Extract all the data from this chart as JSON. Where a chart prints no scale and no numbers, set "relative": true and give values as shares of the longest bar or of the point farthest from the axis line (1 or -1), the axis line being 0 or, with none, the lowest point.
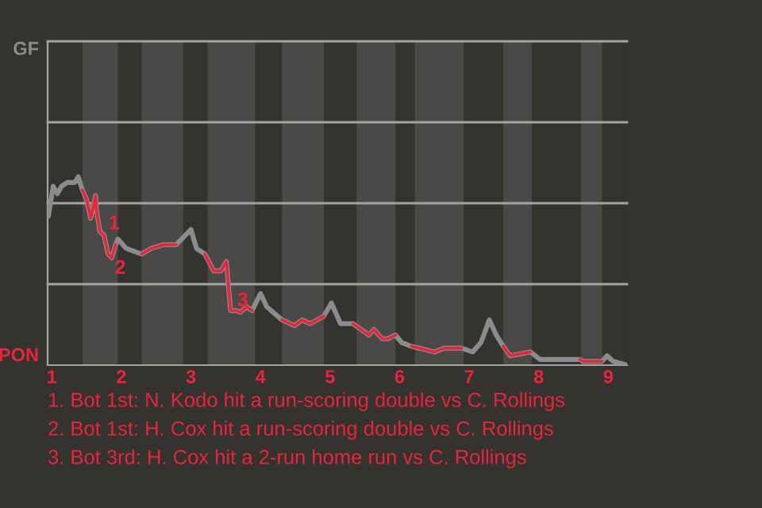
{
  "chart_data": {
    "type": "line",
    "relative": true,
    "x": [
      0.95,
      1.02,
      1.08,
      1.14,
      1.22,
      1.33,
      1.38,
      1.44,
      1.5,
      1.56,
      1.63,
      1.64,
      1.69,
      1.75,
      1.81,
      1.86,
      1.92,
      1.95,
      2.07,
      2.29,
      2.43,
      2.61,
      2.79,
      3.0,
      3.08,
      3.2,
      3.33,
      3.43,
      3.51,
      3.57,
      3.65,
      3.71,
      3.8,
      3.88,
      4.0,
      4.09,
      4.31,
      4.49,
      4.6,
      4.71,
      4.91,
      5.02,
      5.15,
      5.33,
      5.56,
      5.63,
      5.75,
      5.83,
      5.94,
      6.03,
      6.17,
      6.5,
      6.64,
      6.78,
      6.89,
      7.05,
      7.17,
      7.29,
      7.39,
      7.49,
      7.59,
      7.88,
      8.02,
      8.14,
      8.59,
      8.64,
      8.91,
      8.98,
      9.07,
      9.27
    ],
    "series": [
      {
        "color": "#8c8c8c",
        "values": [
          0.79,
          0.95,
          0.91,
          0.95,
          0.97,
          0.97,
          1,
          0.93,
          0.88,
          0.78,
          0.9,
          0.83,
          0.71,
          0.69,
          0.59,
          0.57,
          0.64,
          0.67,
          0.62,
          0.59,
          0.62,
          0.64,
          0.64,
          0.72,
          0.62,
          0.59,
          0.5,
          0.5,
          0.55,
          0.29,
          0.29,
          0.28,
          0.31,
          0.29,
          0.38,
          0.31,
          0.24,
          0.21,
          0.24,
          0.22,
          0.26,
          0.33,
          0.22,
          0.22,
          0.16,
          0.19,
          0.14,
          0.14,
          0.16,
          0.12,
          0.1,
          0.07,
          0.09,
          0.09,
          0.09,
          0.07,
          0.12,
          0.24,
          0.16,
          0.1,
          0.05,
          0.07,
          0.03,
          0.03,
          0.03,
          0.02,
          0.02,
          0.05,
          0.02,
          0
        ]
      },
      {
        "color": "#e8253a",
        "values": [
          null,
          null,
          null,
          null,
          null,
          null,
          null,
          0.93,
          0.88,
          0.78,
          0.9,
          0.83,
          0.71,
          0.69,
          0.59,
          0.57,
          0.64,
          null,
          null,
          0.59,
          0.62,
          0.64,
          0.64,
          null,
          null,
          0.59,
          0.5,
          0.5,
          0.55,
          0.29,
          0.29,
          0.28,
          0.31,
          0.29,
          null,
          null,
          0.24,
          0.21,
          0.24,
          0.22,
          0.26,
          null,
          null,
          0.22,
          0.16,
          0.19,
          0.14,
          0.14,
          0.16,
          null,
          0.1,
          0.07,
          0.09,
          0.09,
          0.09,
          null,
          null,
          null,
          null,
          0.1,
          0.05,
          0.07,
          null,
          null,
          0.03,
          0.02,
          0.02,
          null,
          null,
          null
        ]
      }
    ],
    "xlim": [
      0.94,
      9.27
    ],
    "xticks": [
      1,
      2,
      3,
      4,
      5,
      6,
      7,
      8,
      9
    ],
    "ref_lines": [
      {
        "axis": "y",
        "value": 0.43,
        "color": "#a5a39f"
      },
      {
        "axis": "y",
        "value": 0.86,
        "color": "#a5a39f"
      },
      {
        "axis": "y",
        "value": 1.29,
        "color": "#a5a39f"
      },
      {
        "axis": "y",
        "value": 1.72,
        "color": "#a5a39f"
      }
    ],
    "bands": [
      {
        "axis": "x",
        "from": 1.44,
        "to": 1.95,
        "color": "#4a4947"
      },
      {
        "axis": "x",
        "from": 2.29,
        "to": 2.89,
        "color": "#4a4947"
      },
      {
        "axis": "x",
        "from": 3.24,
        "to": 3.92,
        "color": "#4a4947"
      },
      {
        "axis": "x",
        "from": 4.31,
        "to": 4.91,
        "color": "#4a4947"
      },
      {
        "axis": "x",
        "from": 5.38,
        "to": 5.94,
        "color": "#4a4947"
      },
      {
        "axis": "x",
        "from": 6.22,
        "to": 6.92,
        "color": "#4a4947"
      },
      {
        "axis": "x",
        "from": 7.49,
        "to": 7.9,
        "color": "#4a4947"
      },
      {
        "axis": "x",
        "from": 8.61,
        "to": 8.91,
        "color": "#4a4947"
      }
    ],
    "annotations": [
      "GF",
      {
        "text": "1",
        "x": 1.69,
        "y": 0.71
      },
      {
        "text": "2",
        "x": 1.81,
        "y": 0.59
      },
      {
        "text": "3",
        "x": 3.57,
        "y": 0.29
      },
      "PON",
      "1. Bot 1st: N. Kodo hit a run-scoring double vs C. Rollings",
      "2. Bot 1st: H. Cox hit a run-scoring double vs C. Rollings",
      "3. Bot 3rd: H. Cox hit a 2-run home run vs C. Rollings"
    ]
  }
}
